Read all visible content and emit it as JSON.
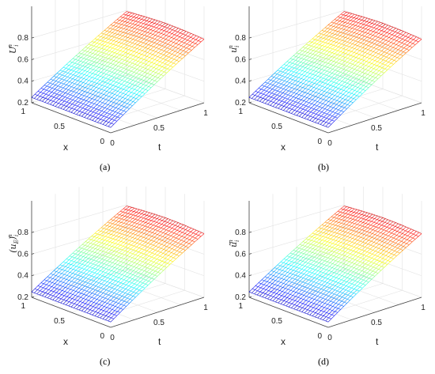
{
  "captions": [
    "(a)",
    "(b)",
    "(c)",
    "(d)"
  ],
  "chart_data": [
    {
      "type": "surface",
      "zlabel": "U",
      "zlabel_sub": "i",
      "zlabel_sup": "n",
      "xlabel": "x",
      "tlabel": "t",
      "x_ticks": [
        "1",
        "0.5",
        "0"
      ],
      "t_ticks": [
        "0",
        "0.5",
        "1"
      ],
      "z_ticks": [
        "0.2",
        "0.4",
        "0.6",
        "0.8"
      ],
      "z_range": [
        0.2,
        0.86
      ],
      "z_min_corner": 0.2,
      "z_max_corner": 0.86,
      "colormap": "jet"
    },
    {
      "type": "surface",
      "zlabel": "u",
      "zlabel_sub": "i",
      "zlabel_sup": "n",
      "xlabel": "x",
      "tlabel": "t",
      "x_ticks": [
        "1",
        "0.5",
        "0"
      ],
      "t_ticks": [
        "0",
        "0.5",
        "1"
      ],
      "z_ticks": [
        "0.2",
        "0.4",
        "0.6",
        "0.8"
      ],
      "z_range": [
        0.2,
        0.86
      ],
      "z_min_corner": 0.2,
      "z_max_corner": 0.86,
      "colormap": "jet"
    },
    {
      "type": "surface",
      "zlabel": "(u",
      "zlabel_sub": "E",
      "zlabel_after": ")",
      "zlabel_sub2": "i",
      "zlabel_sup": "n",
      "xlabel": "x",
      "tlabel": "t",
      "x_ticks": [
        "1",
        "0.5",
        "0"
      ],
      "t_ticks": [
        "0",
        "0.5",
        "1"
      ],
      "z_ticks": [
        "0.2",
        "0.4",
        "0.6",
        "0.8"
      ],
      "z_range": [
        0.2,
        0.86
      ],
      "z_min_corner": 0.2,
      "z_max_corner": 0.86,
      "colormap": "jet"
    },
    {
      "type": "surface",
      "zlabel": "ũ",
      "zlabel_sub": "i",
      "zlabel_sup": "n",
      "xlabel": "x",
      "tlabel": "t",
      "x_ticks": [
        "1",
        "0.5",
        "0"
      ],
      "t_ticks": [
        "0",
        "0.5",
        "1"
      ],
      "z_ticks": [
        "0.2",
        "0.4",
        "0.6",
        "0.8"
      ],
      "z_range": [
        0.2,
        0.86
      ],
      "z_min_corner": 0.2,
      "z_max_corner": 0.86,
      "colormap": "jet"
    }
  ]
}
